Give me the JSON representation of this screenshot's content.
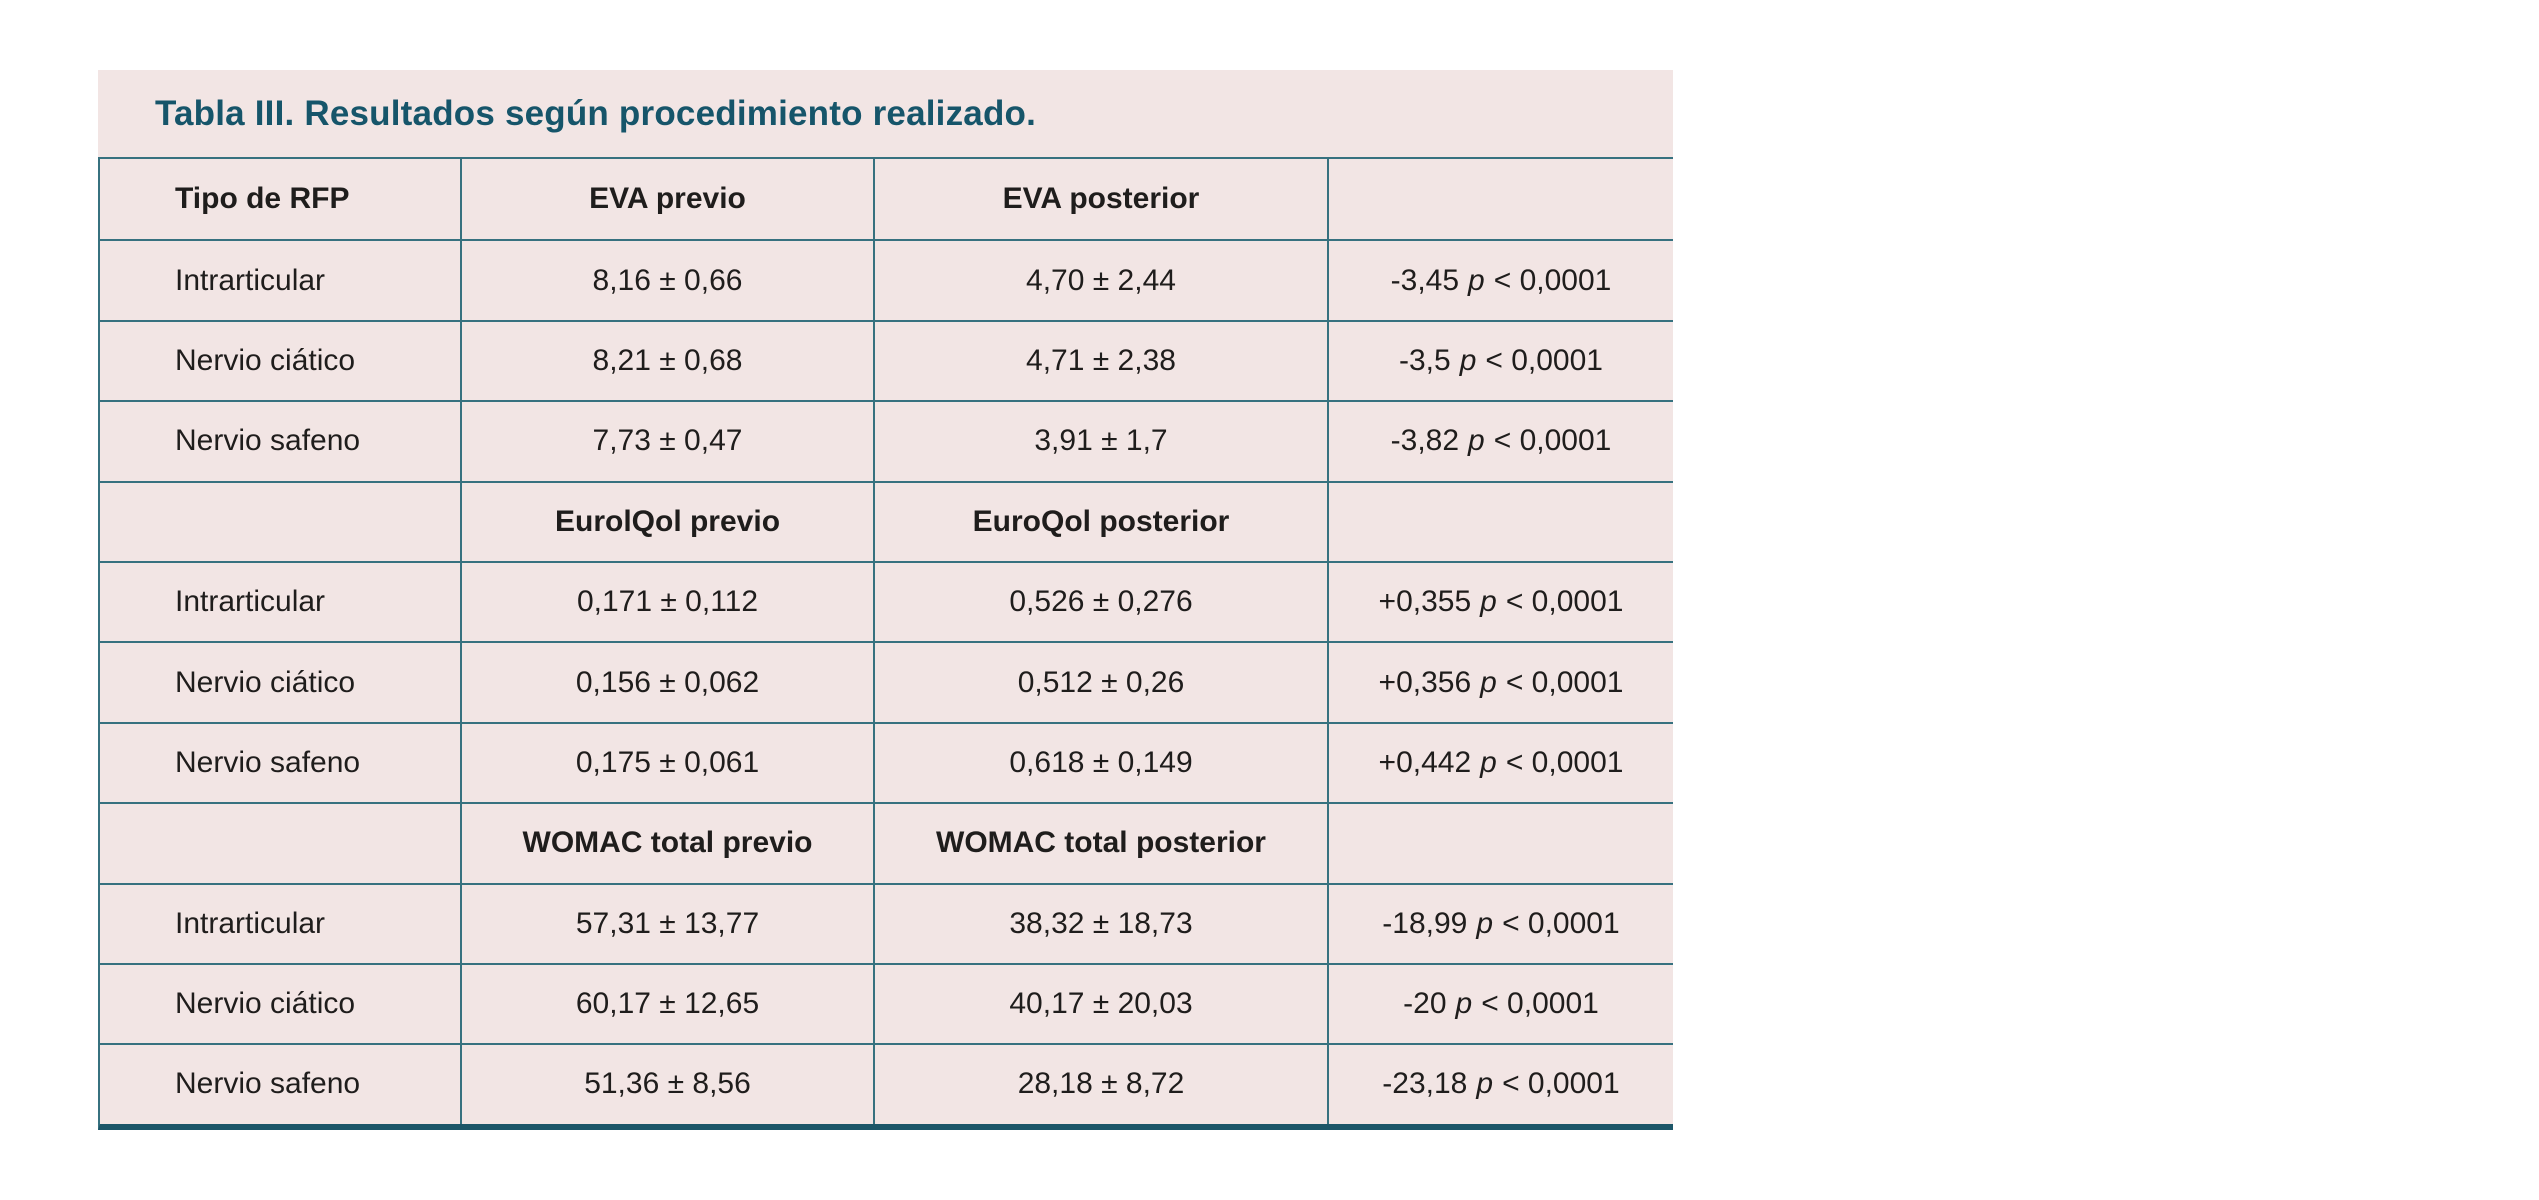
{
  "title": "Tabla III. Resultados según procedimiento realizado.",
  "colors": {
    "panel_bg": "#f2e5e4",
    "grid_line": "#37717f",
    "bottom_border": "#1d5668",
    "title_text": "#16556a",
    "body_text": "#1f1d1c"
  },
  "rows": [
    {
      "type": "header",
      "cells": [
        "Tipo de RFP",
        "EVA previo",
        "EVA posterior",
        ""
      ]
    },
    {
      "type": "data",
      "tipo": "Intrarticular",
      "previo": "8,16 ± 0,66",
      "posterior": "4,70 ± 2,44",
      "delta": "-3,45",
      "p_symbol": "p",
      "p_compare": "< 0,0001"
    },
    {
      "type": "data",
      "tipo": "Nervio ciático",
      "previo": "8,21 ± 0,68",
      "posterior": "4,71 ± 2,38",
      "delta": "-3,5",
      "p_symbol": "p",
      "p_compare": "< 0,0001"
    },
    {
      "type": "data",
      "tipo": "Nervio safeno",
      "previo": "7,73 ± 0,47",
      "posterior": "3,91 ± 1,7",
      "delta": "-3,82",
      "p_symbol": "p",
      "p_compare": "< 0,0001"
    },
    {
      "type": "header",
      "cells": [
        "",
        "EurolQol previo",
        "EuroQol posterior",
        ""
      ]
    },
    {
      "type": "data",
      "tipo": "Intrarticular",
      "previo": "0,171 ± 0,112",
      "posterior": "0,526 ± 0,276",
      "delta": "+0,355",
      "p_symbol": "p",
      "p_compare": "< 0,0001"
    },
    {
      "type": "data",
      "tipo": "Nervio ciático",
      "previo": "0,156 ± 0,062",
      "posterior": "0,512 ± 0,26",
      "delta": "+0,356",
      "p_symbol": "p",
      "p_compare": "< 0,0001"
    },
    {
      "type": "data",
      "tipo": "Nervio safeno",
      "previo": "0,175 ± 0,061",
      "posterior": "0,618 ± 0,149",
      "delta": "+0,442",
      "p_symbol": "p",
      "p_compare": "< 0,0001"
    },
    {
      "type": "header",
      "cells": [
        "",
        "WOMAC total previo",
        "WOMAC total posterior",
        ""
      ]
    },
    {
      "type": "data",
      "tipo": "Intrarticular",
      "previo": "57,31 ± 13,77",
      "posterior": "38,32 ± 18,73",
      "delta": "-18,99",
      "p_symbol": "p",
      "p_compare": "< 0,0001"
    },
    {
      "type": "data",
      "tipo": "Nervio ciático",
      "previo": "60,17 ± 12,65",
      "posterior": "40,17 ± 20,03",
      "delta": "-20",
      "p_symbol": "p",
      "p_compare": "< 0,0001"
    },
    {
      "type": "data",
      "tipo": "Nervio safeno",
      "previo": "51,36 ± 8,56",
      "posterior": "28,18 ± 8,72",
      "delta": "-23,18",
      "p_symbol": "p",
      "p_compare": "< 0,0001"
    }
  ]
}
